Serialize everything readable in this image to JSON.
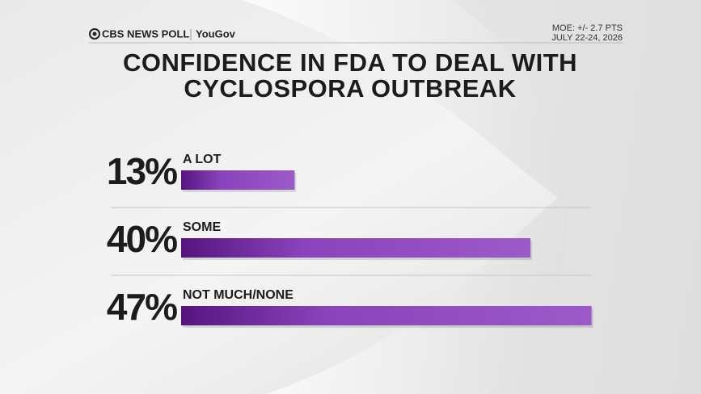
{
  "header": {
    "brand": "CBS NEWS POLL",
    "partner": "YouGov",
    "moe": "MOE: +/- 2.7 PTS",
    "dates": "JULY 22-24, 2026"
  },
  "chart_data": {
    "type": "bar",
    "title": "CONFIDENCE IN FDA TO DEAL WITH CYCLOSPORA OUTBREAK",
    "categories": [
      "A LOT",
      "SOME",
      "NOT MUCH/NONE"
    ],
    "values": [
      13,
      40,
      47
    ],
    "value_labels": [
      "13%",
      "40%",
      "47%"
    ],
    "color": "#8a43bb"
  }
}
